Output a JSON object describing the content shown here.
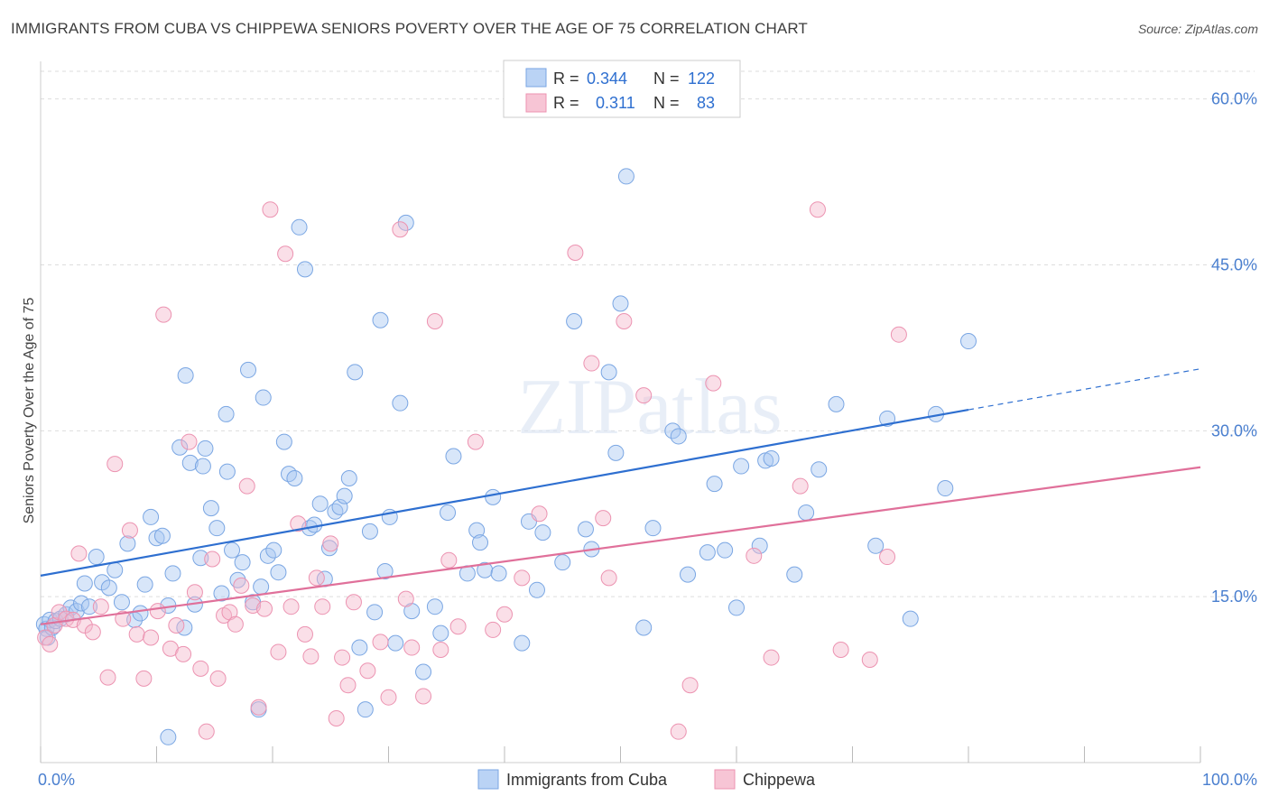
{
  "header": {
    "title": "IMMIGRANTS FROM CUBA VS CHIPPEWA SENIORS POVERTY OVER THE AGE OF 75 CORRELATION CHART",
    "source": "Source: ZipAtlas.com"
  },
  "watermark": "ZIPatlas",
  "legend": {
    "rows": [
      {
        "r_label": "R =",
        "r_value": "0.344",
        "n_label": "N =",
        "n_value": "122",
        "color": "#a9c8f2"
      },
      {
        "r_label": "R =",
        "r_value": "0.311",
        "n_label": "N =",
        "n_value": "83",
        "color": "#f5b7cb"
      }
    ]
  },
  "chart_data": {
    "type": "scatter",
    "title": "IMMIGRANTS FROM CUBA VS CHIPPEWA SENIORS POVERTY OVER THE AGE OF 75 CORRELATION CHART",
    "xlabel": "",
    "ylabel": "Seniors Poverty Over the Age of 75",
    "xlim": [
      0,
      100
    ],
    "ylim": [
      0,
      62.5
    ],
    "x_tick_labels": [
      "0.0%",
      "100.0%"
    ],
    "y_ticks": [
      15,
      30,
      45,
      60
    ],
    "y_tick_labels": [
      "15.0%",
      "30.0%",
      "45.0%",
      "60.0%"
    ],
    "grid": true,
    "legend_position": "top-center",
    "series": [
      {
        "name": "Immigrants from Cuba",
        "color": "#a9c8f2",
        "line_color": "#2e6fd0",
        "trend": {
          "x0": 0,
          "y0": 16.9,
          "x1": 80,
          "y1": 31.9,
          "dashed_to_x": 100,
          "dashed_to_y": 35.6
        },
        "points": [
          [
            0.3,
            12.5
          ],
          [
            0.5,
            12.1
          ],
          [
            0.6,
            11.3
          ],
          [
            0.8,
            12.9
          ],
          [
            1,
            12.2
          ],
          [
            1.3,
            12.8
          ],
          [
            1.7,
            13.0
          ],
          [
            2.2,
            13.4
          ],
          [
            2.6,
            14.0
          ],
          [
            3.1,
            13.7
          ],
          [
            3.5,
            14.4
          ],
          [
            3.8,
            16.2
          ],
          [
            4.2,
            14.1
          ],
          [
            4.8,
            18.6
          ],
          [
            5.3,
            16.3
          ],
          [
            5.9,
            15.8
          ],
          [
            6.4,
            17.4
          ],
          [
            7.0,
            14.5
          ],
          [
            7.5,
            19.8
          ],
          [
            8.1,
            12.9
          ],
          [
            8.6,
            13.5
          ],
          [
            9.0,
            16.1
          ],
          [
            9.5,
            22.2
          ],
          [
            10.0,
            20.3
          ],
          [
            10.5,
            20.5
          ],
          [
            11.0,
            14.2
          ],
          [
            11.4,
            17.1
          ],
          [
            12.0,
            28.5
          ],
          [
            12.4,
            12.2
          ],
          [
            12.9,
            27.1
          ],
          [
            13.3,
            14.3
          ],
          [
            13.8,
            18.5
          ],
          [
            14.2,
            28.4
          ],
          [
            14.7,
            23.0
          ],
          [
            15.2,
            21.2
          ],
          [
            15.6,
            15.3
          ],
          [
            16.1,
            26.3
          ],
          [
            16.5,
            19.2
          ],
          [
            17.0,
            16.5
          ],
          [
            17.4,
            18.1
          ],
          [
            17.9,
            35.5
          ],
          [
            18.3,
            14.5
          ],
          [
            18.8,
            4.8
          ],
          [
            19.2,
            33.0
          ],
          [
            19.6,
            18.7
          ],
          [
            20.1,
            19.2
          ],
          [
            20.5,
            17.2
          ],
          [
            21.0,
            29.0
          ],
          [
            21.4,
            26.1
          ],
          [
            21.9,
            25.7
          ],
          [
            22.3,
            48.4
          ],
          [
            22.8,
            44.6
          ],
          [
            23.2,
            21.2
          ],
          [
            23.6,
            21.5
          ],
          [
            24.1,
            23.4
          ],
          [
            24.5,
            16.6
          ],
          [
            24.9,
            19.4
          ],
          [
            25.4,
            22.7
          ],
          [
            25.8,
            23.1
          ],
          [
            26.2,
            24.1
          ],
          [
            26.6,
            25.7
          ],
          [
            27.1,
            35.3
          ],
          [
            27.5,
            10.4
          ],
          [
            28.0,
            4.8
          ],
          [
            28.4,
            20.9
          ],
          [
            28.8,
            13.6
          ],
          [
            29.3,
            40.0
          ],
          [
            29.7,
            17.3
          ],
          [
            30.1,
            22.2
          ],
          [
            30.6,
            10.8
          ],
          [
            31.0,
            32.5
          ],
          [
            31.5,
            48.8
          ],
          [
            32.0,
            13.7
          ],
          [
            33.0,
            8.2
          ],
          [
            34.0,
            14.1
          ],
          [
            34.5,
            11.7
          ],
          [
            35.1,
            22.6
          ],
          [
            35.6,
            27.7
          ],
          [
            36.8,
            17.1
          ],
          [
            37.6,
            21.0
          ],
          [
            37.9,
            19.9
          ],
          [
            38.3,
            17.4
          ],
          [
            39.0,
            24.0
          ],
          [
            39.5,
            17.1
          ],
          [
            41.5,
            10.8
          ],
          [
            42.1,
            21.8
          ],
          [
            42.8,
            15.6
          ],
          [
            43.3,
            20.8
          ],
          [
            45.0,
            18.1
          ],
          [
            46.0,
            39.9
          ],
          [
            47.0,
            21.1
          ],
          [
            47.5,
            19.3
          ],
          [
            49.0,
            35.3
          ],
          [
            49.6,
            28.0
          ],
          [
            50.0,
            41.5
          ],
          [
            50.5,
            53.0
          ],
          [
            52.0,
            12.2
          ],
          [
            52.8,
            21.2
          ],
          [
            54.5,
            30.0
          ],
          [
            55.0,
            29.5
          ],
          [
            55.8,
            17.0
          ],
          [
            57.5,
            19.0
          ],
          [
            58.1,
            25.2
          ],
          [
            59.0,
            19.2
          ],
          [
            60.0,
            14.0
          ],
          [
            60.4,
            26.8
          ],
          [
            62.0,
            19.6
          ],
          [
            62.5,
            27.3
          ],
          [
            63.0,
            27.5
          ],
          [
            65.0,
            17.0
          ],
          [
            66.0,
            22.6
          ],
          [
            67.1,
            26.5
          ],
          [
            68.6,
            32.4
          ],
          [
            72.0,
            19.6
          ],
          [
            73.0,
            31.1
          ],
          [
            75.0,
            13.0
          ],
          [
            77.2,
            31.5
          ],
          [
            78.0,
            24.8
          ],
          [
            80.0,
            38.1
          ],
          [
            11.0,
            2.3
          ],
          [
            12.5,
            35.0
          ],
          [
            14.0,
            26.8
          ],
          [
            16.0,
            31.5
          ],
          [
            19.0,
            15.9
          ]
        ]
      },
      {
        "name": "Chippewa",
        "color": "#f5b7cb",
        "line_color": "#e0709a",
        "trend": {
          "x0": 0,
          "y0": 12.5,
          "x1": 100,
          "y1": 26.7
        },
        "points": [
          [
            0.4,
            11.3
          ],
          [
            0.8,
            10.7
          ],
          [
            1.2,
            12.4
          ],
          [
            1.6,
            13.6
          ],
          [
            2.2,
            13.0
          ],
          [
            2.8,
            12.9
          ],
          [
            3.3,
            18.9
          ],
          [
            3.8,
            12.4
          ],
          [
            4.5,
            11.8
          ],
          [
            5.2,
            14.1
          ],
          [
            5.8,
            7.7
          ],
          [
            6.4,
            27.0
          ],
          [
            7.1,
            13.0
          ],
          [
            7.7,
            21.0
          ],
          [
            8.3,
            11.6
          ],
          [
            8.9,
            7.6
          ],
          [
            9.5,
            11.3
          ],
          [
            10.1,
            13.7
          ],
          [
            10.6,
            40.5
          ],
          [
            11.2,
            10.3
          ],
          [
            11.7,
            12.4
          ],
          [
            12.3,
            9.8
          ],
          [
            12.8,
            29.0
          ],
          [
            13.3,
            15.4
          ],
          [
            13.8,
            8.5
          ],
          [
            14.3,
            2.8
          ],
          [
            14.8,
            18.4
          ],
          [
            15.3,
            7.6
          ],
          [
            15.8,
            13.3
          ],
          [
            16.3,
            13.6
          ],
          [
            16.8,
            12.5
          ],
          [
            17.3,
            16.0
          ],
          [
            17.8,
            25.0
          ],
          [
            18.3,
            14.2
          ],
          [
            18.8,
            5.0
          ],
          [
            19.3,
            13.9
          ],
          [
            19.8,
            50.0
          ],
          [
            20.5,
            10.0
          ],
          [
            21.1,
            46.0
          ],
          [
            21.6,
            14.1
          ],
          [
            22.2,
            21.6
          ],
          [
            22.8,
            11.6
          ],
          [
            23.3,
            9.6
          ],
          [
            23.8,
            16.7
          ],
          [
            24.3,
            14.1
          ],
          [
            25.0,
            19.8
          ],
          [
            25.5,
            4.0
          ],
          [
            26.0,
            9.5
          ],
          [
            26.5,
            7.0
          ],
          [
            27.0,
            14.5
          ],
          [
            28.2,
            8.3
          ],
          [
            29.3,
            10.9
          ],
          [
            30.0,
            5.9
          ],
          [
            31.0,
            48.2
          ],
          [
            31.5,
            14.8
          ],
          [
            32.0,
            10.4
          ],
          [
            33.0,
            6.0
          ],
          [
            34.0,
            39.9
          ],
          [
            34.5,
            10.2
          ],
          [
            35.2,
            18.3
          ],
          [
            36.0,
            12.3
          ],
          [
            37.5,
            29.0
          ],
          [
            39.0,
            12.0
          ],
          [
            40.0,
            13.4
          ],
          [
            41.5,
            16.7
          ],
          [
            43.0,
            22.5
          ],
          [
            46.1,
            46.1
          ],
          [
            47.5,
            36.1
          ],
          [
            48.5,
            22.1
          ],
          [
            49.0,
            16.7
          ],
          [
            50.3,
            39.9
          ],
          [
            52.0,
            33.2
          ],
          [
            55.0,
            2.8
          ],
          [
            56.0,
            7.0
          ],
          [
            58.0,
            34.3
          ],
          [
            61.5,
            18.7
          ],
          [
            63.0,
            9.5
          ],
          [
            65.5,
            25.0
          ],
          [
            67.0,
            50.0
          ],
          [
            69.0,
            10.2
          ],
          [
            71.5,
            9.3
          ],
          [
            73.0,
            18.6
          ],
          [
            74.0,
            38.7
          ]
        ]
      }
    ]
  },
  "bottom_legend": {
    "items": [
      {
        "label": "Immigrants from Cuba",
        "color": "#a9c8f2"
      },
      {
        "label": "Chippewa",
        "color": "#f5b7cb"
      }
    ]
  }
}
